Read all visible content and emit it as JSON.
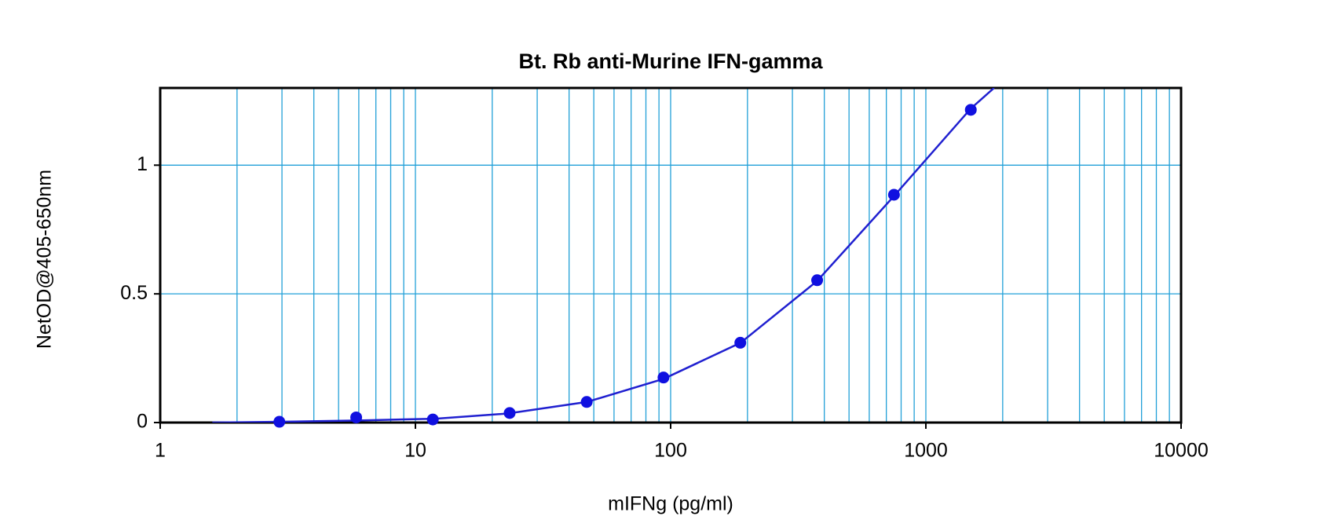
{
  "chart_data": {
    "type": "scatter",
    "title": "Bt. Rb anti-Murine IFN-gamma",
    "x_label": "mIFNg (pg/ml)",
    "y_label": "NetOD@405-650nm",
    "x_scale": "log",
    "xlim": [
      1,
      10000
    ],
    "xticks": [
      1,
      10,
      100,
      1000,
      10000
    ],
    "xminorticks": [
      2,
      3,
      4,
      5,
      6,
      7,
      8,
      9,
      20,
      30,
      40,
      50,
      60,
      70,
      80,
      90,
      200,
      300,
      400,
      500,
      600,
      700,
      800,
      900,
      2000,
      3000,
      4000,
      5000,
      6000,
      7000,
      8000,
      9000
    ],
    "ylim": [
      0,
      1.3
    ],
    "yticks": [
      0,
      0.5,
      1
    ],
    "grid": true,
    "grid_color": "#22a0d8",
    "series": [
      {
        "color": "#1010e0",
        "x": [
          2.93,
          5.86,
          11.7,
          23.4,
          46.9,
          93.75,
          187.5,
          375,
          750,
          1500
        ],
        "values": [
          0.003,
          0.02,
          0.012,
          0.037,
          0.08,
          0.175,
          0.31,
          0.553,
          0.885,
          1.215
        ]
      }
    ],
    "fit": {
      "color": "#2020d0",
      "x": [
        1.6,
        3,
        6,
        12,
        23,
        47,
        94,
        188,
        375,
        750,
        1500,
        1850
      ],
      "values": [
        0,
        0.003,
        0.008,
        0.015,
        0.035,
        0.08,
        0.17,
        0.31,
        0.55,
        0.88,
        1.22,
        1.3
      ]
    }
  }
}
